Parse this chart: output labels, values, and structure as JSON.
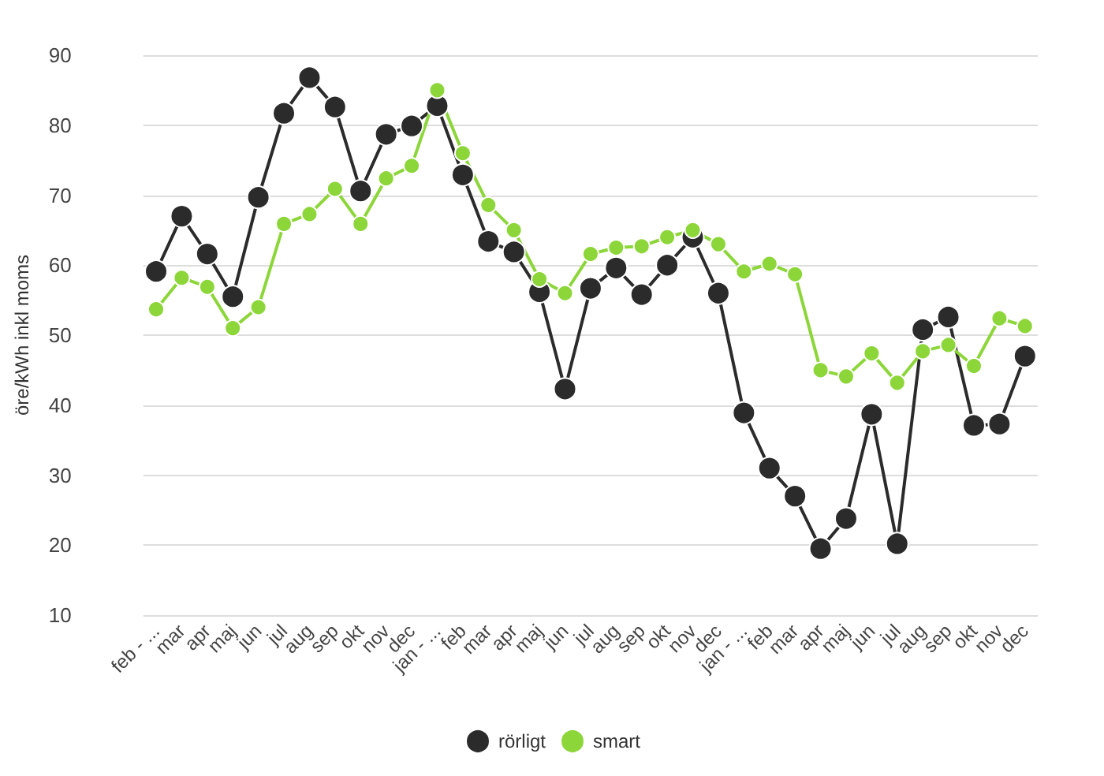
{
  "chart_data": {
    "type": "line",
    "ylabel": "öre/kWh inkl moms",
    "categories": [
      "feb - ...",
      "mar",
      "apr",
      "maj",
      "jun",
      "jul",
      "aug",
      "sep",
      "okt",
      "nov",
      "dec",
      "jan - ...",
      "feb",
      "mar",
      "apr",
      "maj",
      "jun",
      "jul",
      "aug",
      "sep",
      "okt",
      "nov",
      "dec",
      "jan - ...",
      "feb",
      "mar",
      "apr",
      "maj",
      "jun",
      "jul",
      "aug",
      "sep",
      "okt",
      "nov",
      "dec"
    ],
    "series": [
      {
        "name": "rörligt",
        "color": "#2b2b2b",
        "values": [
          59.1,
          67,
          61.6,
          55.5,
          69.7,
          81.7,
          86.8,
          82.6,
          70.6,
          78.7,
          79.9,
          82.8,
          72.9,
          63.4,
          61.9,
          56.2,
          42.3,
          56.7,
          59.6,
          55.8,
          60,
          64,
          56,
          38.9,
          31,
          27,
          19.5,
          23.8,
          38.7,
          20.2,
          50.8,
          52.6,
          37.1,
          37.3,
          47
        ]
      },
      {
        "name": "smart",
        "color": "#8dd63a",
        "values": [
          53.7,
          58.2,
          56.9,
          51,
          54,
          65.9,
          67.3,
          70.9,
          65.9,
          72.4,
          74.2,
          85,
          76,
          68.6,
          65,
          58,
          56,
          61.6,
          62.5,
          62.7,
          64,
          65,
          63,
          59.1,
          60.2,
          58.7,
          45,
          44.1,
          47.4,
          43.2,
          47.7,
          48.6,
          45.6,
          52.4,
          51.3
        ]
      }
    ],
    "ylim": [
      10,
      90
    ],
    "yticks": [
      10,
      20,
      30,
      40,
      50,
      60,
      70,
      80,
      90
    ],
    "grid": "y",
    "legend": "bottom",
    "marker": "circle",
    "line_style": "solid"
  }
}
